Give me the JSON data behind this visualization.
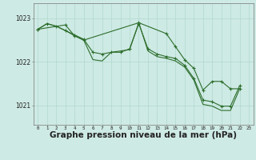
{
  "bg_color": "#ceeae4",
  "grid_color": "#b0d8d0",
  "line_color": "#2d6e2d",
  "xlabel": "Graphe pression niveau de la mer (hPa)",
  "xlabel_fontsize": 7.5,
  "ylim": [
    1020.55,
    1023.35
  ],
  "yticks": [
    1021,
    1022,
    1023
  ],
  "xticks": [
    0,
    1,
    2,
    3,
    4,
    5,
    6,
    7,
    8,
    9,
    10,
    11,
    12,
    13,
    14,
    15,
    16,
    17,
    18,
    19,
    20,
    21,
    22,
    23
  ],
  "hours": [
    0,
    1,
    2,
    3,
    4,
    5,
    6,
    7,
    8,
    9,
    10,
    11,
    12,
    13,
    14,
    15,
    16,
    17,
    18,
    19,
    20,
    21,
    22,
    23
  ],
  "series1": [
    1022.75,
    1022.88,
    1022.82,
    1022.72,
    1022.6,
    1022.5,
    1022.05,
    1022.02,
    1022.22,
    1022.25,
    1022.28,
    1022.9,
    1022.25,
    1022.12,
    1022.08,
    1022.02,
    1021.88,
    1021.58,
    1021.02,
    1020.98,
    1020.88,
    1020.88,
    1021.38,
    null
  ],
  "series2": [
    1022.75,
    1022.88,
    1022.82,
    1022.72,
    1022.62,
    1022.52,
    1022.22,
    1022.18,
    1022.22,
    1022.22,
    1022.3,
    1022.88,
    1022.3,
    1022.18,
    1022.12,
    1022.08,
    1021.92,
    1021.62,
    1021.12,
    1021.08,
    1020.98,
    1020.98,
    1021.45,
    null
  ],
  "series3_x": [
    0,
    3,
    4,
    5,
    11,
    14,
    15,
    16,
    17,
    18,
    19,
    20,
    21,
    22
  ],
  "series3_y": [
    1022.75,
    1022.85,
    1022.6,
    1022.5,
    1022.9,
    1022.65,
    1022.35,
    1022.05,
    1021.85,
    1021.35,
    1021.55,
    1021.55,
    1021.38,
    1021.38
  ]
}
